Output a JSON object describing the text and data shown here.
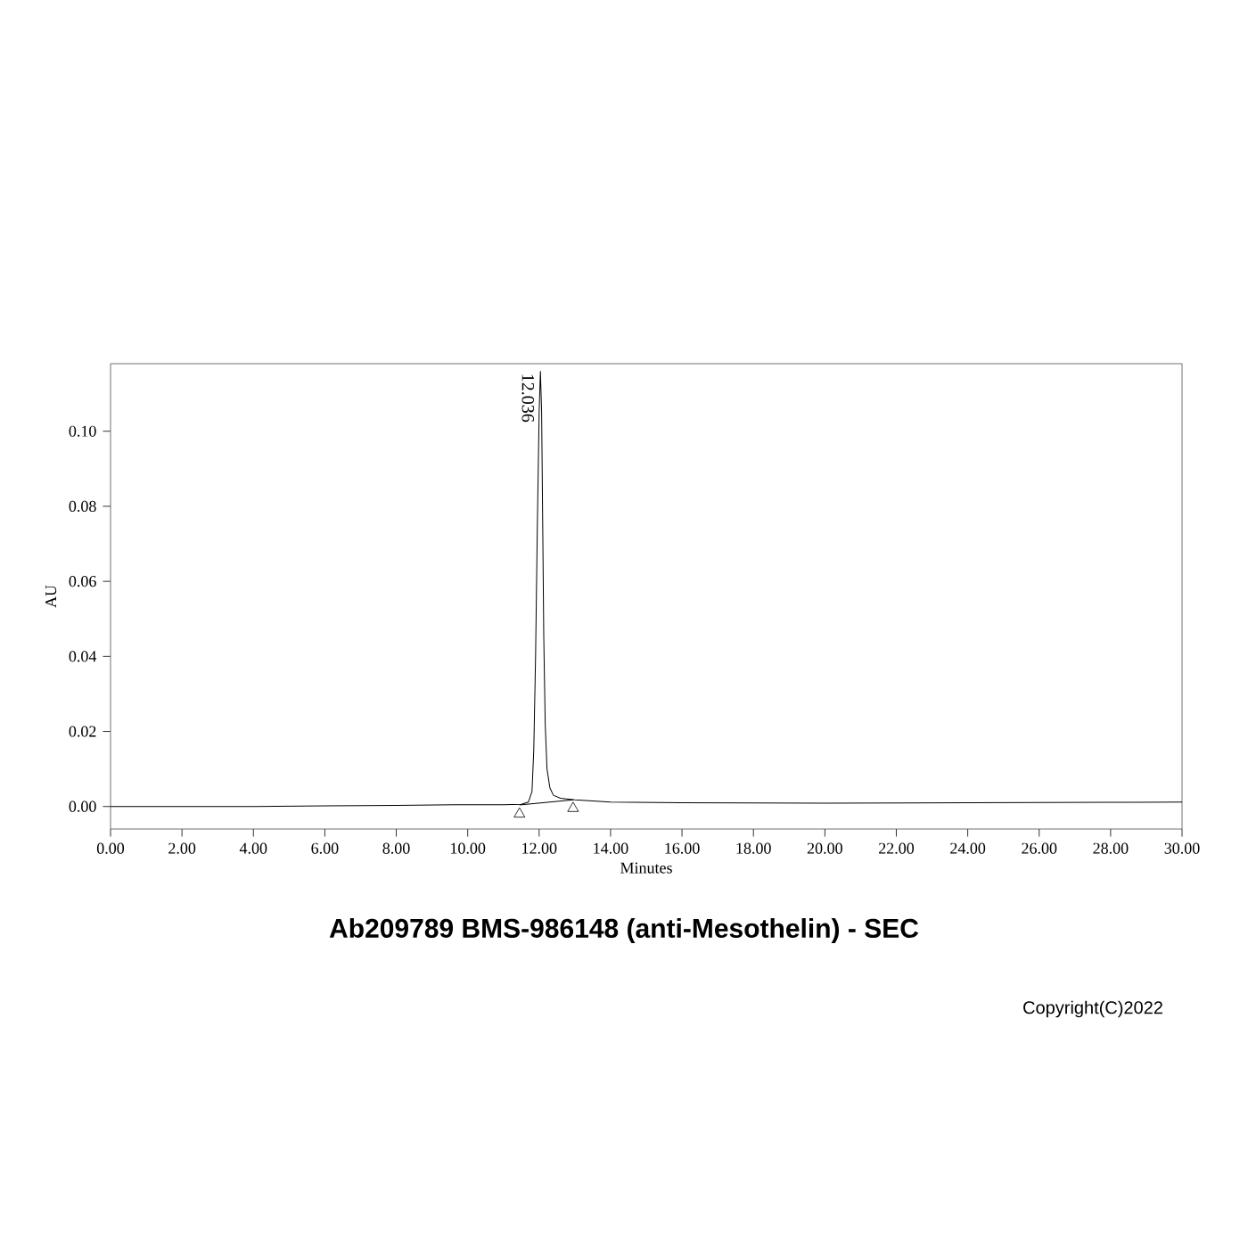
{
  "chart_data": {
    "type": "line",
    "title": "Ab209789 BMS-986148 (anti-Mesothelin) - SEC",
    "xlabel": "Minutes",
    "ylabel": "AU",
    "xlim": [
      0,
      30
    ],
    "ylim": [
      -0.006,
      0.118
    ],
    "xticks": [
      {
        "value": 0,
        "label": "0.00"
      },
      {
        "value": 2,
        "label": "2.00"
      },
      {
        "value": 4,
        "label": "4.00"
      },
      {
        "value": 6,
        "label": "6.00"
      },
      {
        "value": 8,
        "label": "8.00"
      },
      {
        "value": 10,
        "label": "10.00"
      },
      {
        "value": 12,
        "label": "12.00"
      },
      {
        "value": 14,
        "label": "14.00"
      },
      {
        "value": 16,
        "label": "16.00"
      },
      {
        "value": 18,
        "label": "18.00"
      },
      {
        "value": 20,
        "label": "20.00"
      },
      {
        "value": 22,
        "label": "22.00"
      },
      {
        "value": 24,
        "label": "24.00"
      },
      {
        "value": 26,
        "label": "26.00"
      },
      {
        "value": 28,
        "label": "28.00"
      },
      {
        "value": 30,
        "label": "30.00"
      }
    ],
    "yticks": [
      {
        "value": 0,
        "label": "0.00"
      },
      {
        "value": 0.02,
        "label": "0.02"
      },
      {
        "value": 0.04,
        "label": "0.04"
      },
      {
        "value": 0.06,
        "label": "0.06"
      },
      {
        "value": 0.08,
        "label": "0.08"
      },
      {
        "value": 0.1,
        "label": "0.10"
      }
    ],
    "series": [
      {
        "color": "#000000",
        "x": [
          0,
          2,
          4,
          6,
          8,
          10,
          11,
          11.5,
          11.7,
          11.8,
          11.85,
          11.9,
          11.95,
          12.0,
          12.036,
          12.07,
          12.1,
          12.13,
          12.17,
          12.22,
          12.3,
          12.4,
          12.6,
          13,
          14,
          16,
          20,
          24,
          28,
          30
        ],
        "values": [
          0,
          0,
          0,
          0.0002,
          0.0003,
          0.0005,
          0.0005,
          0.0006,
          0.0012,
          0.004,
          0.015,
          0.04,
          0.075,
          0.105,
          0.116,
          0.105,
          0.075,
          0.045,
          0.022,
          0.01,
          0.005,
          0.003,
          0.0022,
          0.0018,
          0.0012,
          0.001,
          0.0009,
          0.001,
          0.0011,
          0.0012
        ]
      },
      {
        "color": "#000000",
        "x": [
          11.45,
          12.95
        ],
        "values": [
          0.0004,
          0.0018
        ]
      },
      {
        "type": "scatter",
        "marker": "triangle",
        "color": "#000000",
        "x": [
          11.45,
          12.95
        ],
        "values": [
          -0.002,
          -0.0005
        ]
      }
    ],
    "annotations": [
      {
        "text": "12.036",
        "x": 12.036,
        "y": 0.116
      },
      "Copyright(C)2022"
    ]
  }
}
